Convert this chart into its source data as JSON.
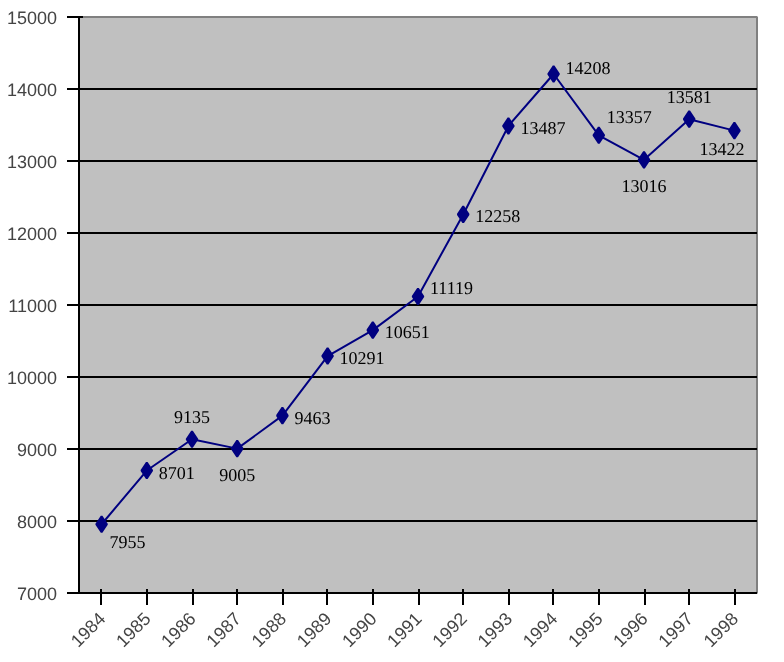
{
  "chart_data": {
    "type": "line",
    "categories": [
      "1984",
      "1985",
      "1986",
      "1987",
      "1988",
      "1989",
      "1990",
      "1991",
      "1992",
      "1993",
      "1994",
      "1995",
      "1996",
      "1997",
      "1998"
    ],
    "series": [
      {
        "color": "#000080",
        "values": [
          7955,
          8701,
          9135,
          9005,
          9463,
          10291,
          10651,
          11119,
          12258,
          13487,
          14208,
          13357,
          13016,
          13581,
          13422
        ]
      }
    ],
    "ylim": [
      7000,
      15000
    ],
    "yticks": [
      7000,
      8000,
      9000,
      10000,
      11000,
      12000,
      13000,
      14000,
      15000
    ],
    "grid": "y",
    "marker": "diamond",
    "line_style": "solid",
    "data_labels": true
  }
}
